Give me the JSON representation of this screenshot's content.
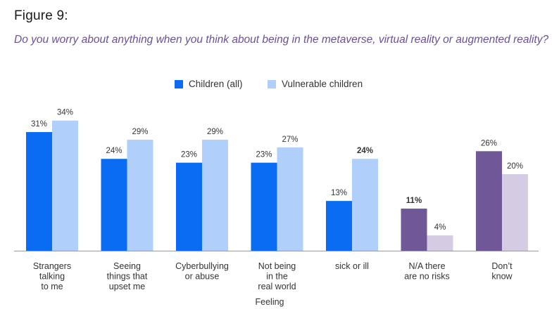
{
  "figure_label": "Figure 9:",
  "question": "Do you worry about anything when you think about being in the metaverse, virtual reality or augmented reality?",
  "colors": {
    "children_all": "#0a6cf2",
    "vulnerable": "#b0d0fb",
    "purple_dark": "#6f5798",
    "purple_light": "#d5cce3",
    "question_text": "#6a4f96",
    "axis": "#9a9a9a"
  },
  "chart_data": {
    "type": "bar",
    "title": "Do you worry about anything when you think about being in the metaverse, virtual reality or augmented reality?",
    "xlabel": "Feeling",
    "ylabel": "",
    "ylim": [
      0,
      36
    ],
    "grid": false,
    "legend_placement": "top-center",
    "categories": [
      [
        "Strangers",
        "talking",
        "to me"
      ],
      [
        "Seeing",
        "things that",
        "upset me"
      ],
      [
        "Cyberbullying",
        "or abuse"
      ],
      [
        "Not being",
        "in the",
        "real world"
      ],
      [
        "sick or ill"
      ],
      [
        "N/A there",
        "are no risks"
      ],
      [
        "Don’t",
        "know"
      ]
    ],
    "series": [
      {
        "name": "Children (all)",
        "values": [
          31,
          24,
          23,
          23,
          13,
          11,
          26
        ],
        "labels": [
          "31%",
          "24%",
          "23%",
          "23%",
          "13%",
          "11%",
          "26%"
        ]
      },
      {
        "name": "Vulnerable children",
        "values": [
          34,
          29,
          29,
          27,
          24,
          4,
          20
        ],
        "labels": [
          "34%",
          "29%",
          "29%",
          "27%",
          "24%",
          "4%",
          "20%"
        ]
      }
    ],
    "bold_labels": [
      {
        "series": 1,
        "index": 4
      },
      {
        "series": 0,
        "index": 5
      }
    ],
    "purple_categories": [
      5,
      6
    ]
  }
}
